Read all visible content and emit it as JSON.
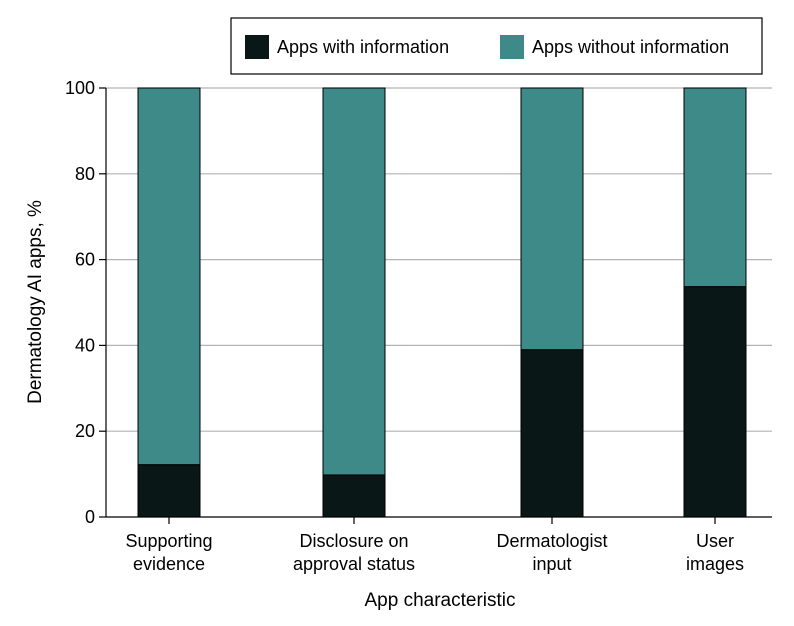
{
  "chart_data": {
    "type": "bar",
    "stacked": true,
    "categories": [
      [
        "Supporting",
        "evidence"
      ],
      [
        "Disclosure on",
        "approval status"
      ],
      [
        "Dermatologist",
        "input"
      ],
      [
        "User",
        "images"
      ]
    ],
    "series": [
      {
        "name": "Apps with information",
        "values": [
          12.2,
          9.8,
          39.0,
          53.7
        ],
        "color": "#091716"
      },
      {
        "name": "Apps without information",
        "values": [
          87.8,
          90.2,
          61.0,
          46.3
        ],
        "color": "#3d8a89"
      }
    ],
    "xlabel": "App characteristic",
    "ylabel": "Dermatology AI apps, %",
    "ylim": [
      0,
      100
    ],
    "yticks": [
      0,
      20,
      40,
      60,
      80,
      100
    ],
    "grid": true,
    "legend_position": "top-right"
  }
}
